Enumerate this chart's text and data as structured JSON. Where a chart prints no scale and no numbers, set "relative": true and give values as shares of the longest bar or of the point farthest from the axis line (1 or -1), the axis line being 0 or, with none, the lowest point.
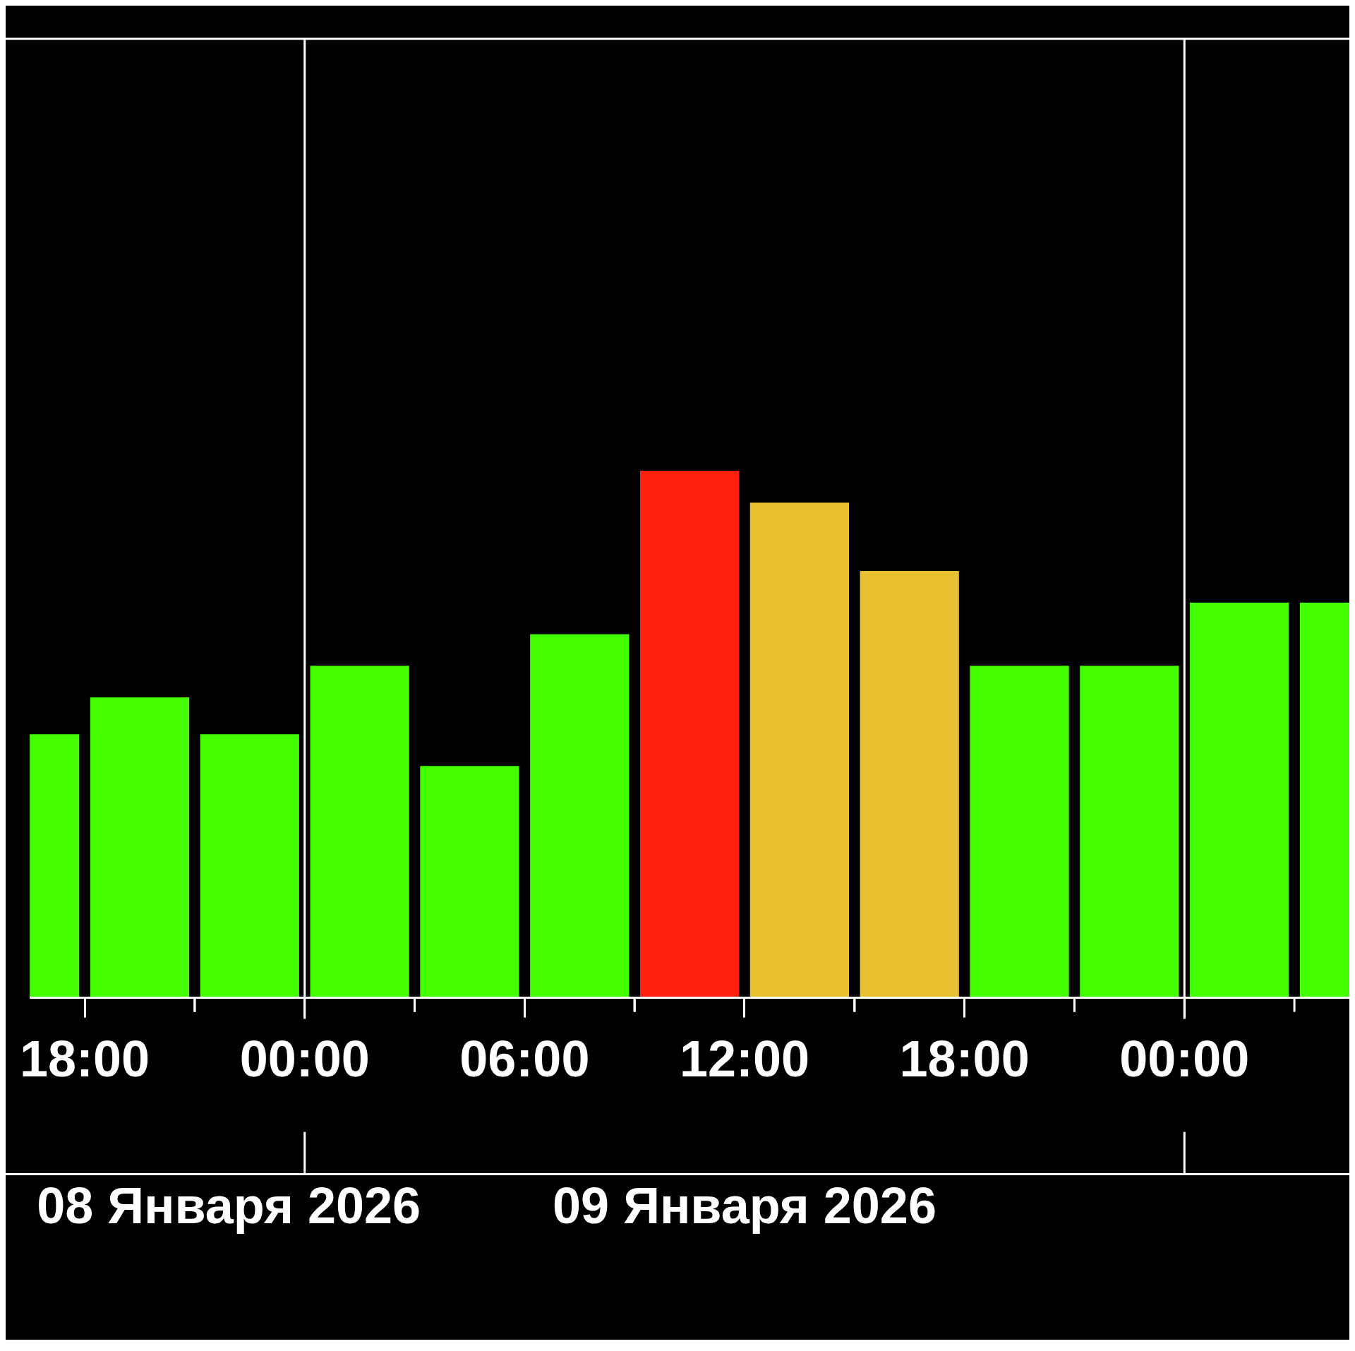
{
  "chart_data": {
    "type": "bar",
    "relative": true,
    "x": [
      "2026-01-08T16:30",
      "2026-01-08T19:30",
      "2026-01-08T22:30",
      "2026-01-09T01:30",
      "2026-01-09T04:30",
      "2026-01-09T07:30",
      "2026-01-09T10:30",
      "2026-01-09T13:30",
      "2026-01-09T16:30",
      "2026-01-09T19:30",
      "2026-01-09T22:30",
      "2026-01-10T01:30",
      "2026-01-10T04:30"
    ],
    "values": [
      0.5,
      0.57,
      0.5,
      0.63,
      0.44,
      0.69,
      1,
      0.94,
      0.81,
      0.63,
      0.63,
      0.75,
      0.75
    ],
    "colors": [
      "#44ff00",
      "#44ff00",
      "#44ff00",
      "#44ff00",
      "#44ff00",
      "#44ff00",
      "#ff2010",
      "#e8c030",
      "#e8c030",
      "#44ff00",
      "#44ff00",
      "#44ff00",
      "#44ff00"
    ],
    "xlim": [
      "2026-01-08T16:30",
      "2026-01-10T04:30"
    ],
    "xticks": [
      {
        "value": "2026-01-08T18:00",
        "label": "18:00"
      },
      {
        "value": "2026-01-09T00:00",
        "label": "00:00"
      },
      {
        "value": "2026-01-09T06:00",
        "label": "06:00"
      },
      {
        "value": "2026-01-09T12:00",
        "label": "12:00"
      },
      {
        "value": "2026-01-09T18:00",
        "label": "18:00"
      },
      {
        "value": "2026-01-10T00:00",
        "label": "00:00"
      }
    ],
    "ref_lines": [
      {
        "axis": "x",
        "value": "2026-01-09T00:00",
        "color": "#ffffff"
      },
      {
        "axis": "x",
        "value": "2026-01-10T00:00",
        "color": "#ffffff"
      }
    ],
    "annotations": [
      "08 Января 2026",
      "09 Января 2026"
    ],
    "grid": false,
    "legend": false
  }
}
